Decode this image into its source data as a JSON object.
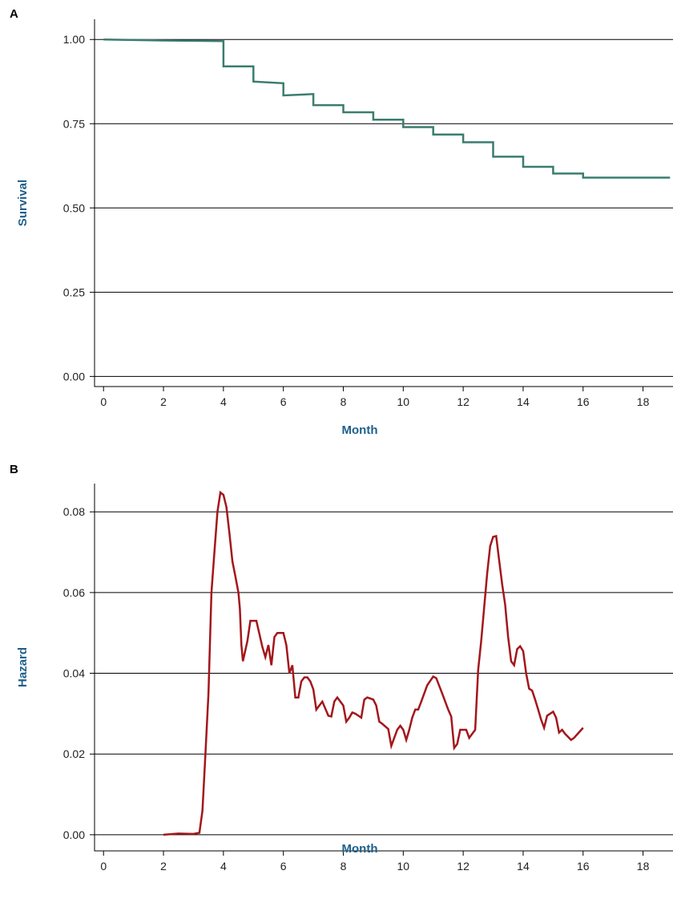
{
  "chart_data": [
    {
      "type": "line",
      "panel_label": "A",
      "xlabel": "Month",
      "ylabel": "Survival",
      "xlim": [
        -0.3,
        19
      ],
      "ylim": [
        -0.03,
        1.06
      ],
      "x_ticks": [
        "0",
        "2",
        "4",
        "6",
        "8",
        "10",
        "12",
        "14",
        "16",
        "18"
      ],
      "y_ticks": [
        "0.00",
        "0.25",
        "0.50",
        "0.75",
        "1.00"
      ],
      "grid": "horizontal",
      "step": true,
      "color": "#3a7d6e",
      "series": [
        {
          "x": [
            0,
            2,
            4,
            4,
            5,
            5,
            6,
            6,
            7,
            7,
            8,
            8,
            9,
            9,
            10,
            10,
            11,
            11,
            12,
            12,
            13,
            13,
            14,
            14,
            15,
            15,
            16,
            16,
            18.9
          ],
          "y": [
            1.0,
            0.997,
            0.995,
            0.92,
            0.92,
            0.875,
            0.87,
            0.834,
            0.838,
            0.805,
            0.805,
            0.784,
            0.784,
            0.762,
            0.762,
            0.74,
            0.74,
            0.718,
            0.718,
            0.695,
            0.695,
            0.652,
            0.652,
            0.622,
            0.622,
            0.602,
            0.602,
            0.59,
            0.59
          ]
        }
      ]
    },
    {
      "type": "line",
      "panel_label": "B",
      "xlabel": "Month",
      "ylabel": "Hazard",
      "xlim": [
        -0.3,
        19
      ],
      "ylim": [
        -0.004,
        0.087
      ],
      "x_ticks": [
        "0",
        "2",
        "4",
        "6",
        "8",
        "10",
        "12",
        "14",
        "16",
        "18"
      ],
      "y_ticks": [
        "0.00",
        "0.02",
        "0.04",
        "0.06",
        "0.08"
      ],
      "grid": "horizontal",
      "color": "#a3161b",
      "series": [
        {
          "x": [
            2.0,
            2.5,
            3.0,
            3.2,
            3.3,
            3.4,
            3.5,
            3.6,
            3.7,
            3.8,
            3.9,
            4.0,
            4.1,
            4.2,
            4.3,
            4.4,
            4.5,
            4.55,
            4.6,
            4.65,
            4.8,
            4.9,
            5.0,
            5.1,
            5.3,
            5.4,
            5.5,
            5.6,
            5.7,
            5.8,
            6.0,
            6.1,
            6.2,
            6.3,
            6.4,
            6.5,
            6.6,
            6.7,
            6.8,
            6.9,
            7.0,
            7.1,
            7.3,
            7.5,
            7.6,
            7.7,
            7.8,
            8.0,
            8.1,
            8.2,
            8.3,
            8.4,
            8.6,
            8.7,
            8.8,
            9.0,
            9.1,
            9.2,
            9.3,
            9.5,
            9.6,
            9.8,
            9.9,
            10.0,
            10.1,
            10.2,
            10.3,
            10.4,
            10.5,
            10.6,
            10.8,
            11.0,
            11.1,
            11.3,
            11.5,
            11.6,
            11.7,
            11.8,
            11.9,
            12.1,
            12.2,
            12.3,
            12.4,
            12.5,
            12.6,
            12.7,
            12.8,
            12.9,
            13.0,
            13.1,
            13.2,
            13.3,
            13.4,
            13.5,
            13.6,
            13.7,
            13.8,
            13.9,
            14.0,
            14.1,
            14.2,
            14.3,
            14.4,
            14.5,
            14.6,
            14.7,
            14.8,
            15.0,
            15.1,
            15.2,
            15.3,
            15.4,
            15.6,
            15.7,
            16.0
          ],
          "y": [
            0.0,
            0.0003,
            0.0002,
            0.0005,
            0.006,
            0.02,
            0.035,
            0.06,
            0.07,
            0.08,
            0.0848,
            0.0842,
            0.0812,
            0.0748,
            0.0677,
            0.064,
            0.06,
            0.056,
            0.047,
            0.043,
            0.048,
            0.053,
            0.053,
            0.053,
            0.0465,
            0.044,
            0.047,
            0.042,
            0.049,
            0.05,
            0.05,
            0.047,
            0.04,
            0.042,
            0.034,
            0.034,
            0.038,
            0.039,
            0.039,
            0.038,
            0.036,
            0.031,
            0.033,
            0.0295,
            0.0293,
            0.033,
            0.034,
            0.032,
            0.028,
            0.029,
            0.0303,
            0.03,
            0.029,
            0.0335,
            0.034,
            0.0335,
            0.032,
            0.028,
            0.0275,
            0.0262,
            0.022,
            0.026,
            0.027,
            0.026,
            0.0235,
            0.026,
            0.029,
            0.031,
            0.031,
            0.033,
            0.037,
            0.0392,
            0.0388,
            0.035,
            0.031,
            0.0293,
            0.0215,
            0.0225,
            0.026,
            0.026,
            0.024,
            0.025,
            0.026,
            0.0408,
            0.048,
            0.0563,
            0.0648,
            0.0715,
            0.0738,
            0.074,
            0.068,
            0.062,
            0.057,
            0.049,
            0.043,
            0.042,
            0.046,
            0.0467,
            0.0455,
            0.04,
            0.0362,
            0.0357,
            0.0335,
            0.031,
            0.0285,
            0.0265,
            0.0295,
            0.0305,
            0.029,
            0.0253,
            0.026,
            0.025,
            0.0235,
            0.024,
            0.0265
          ]
        }
      ]
    }
  ]
}
